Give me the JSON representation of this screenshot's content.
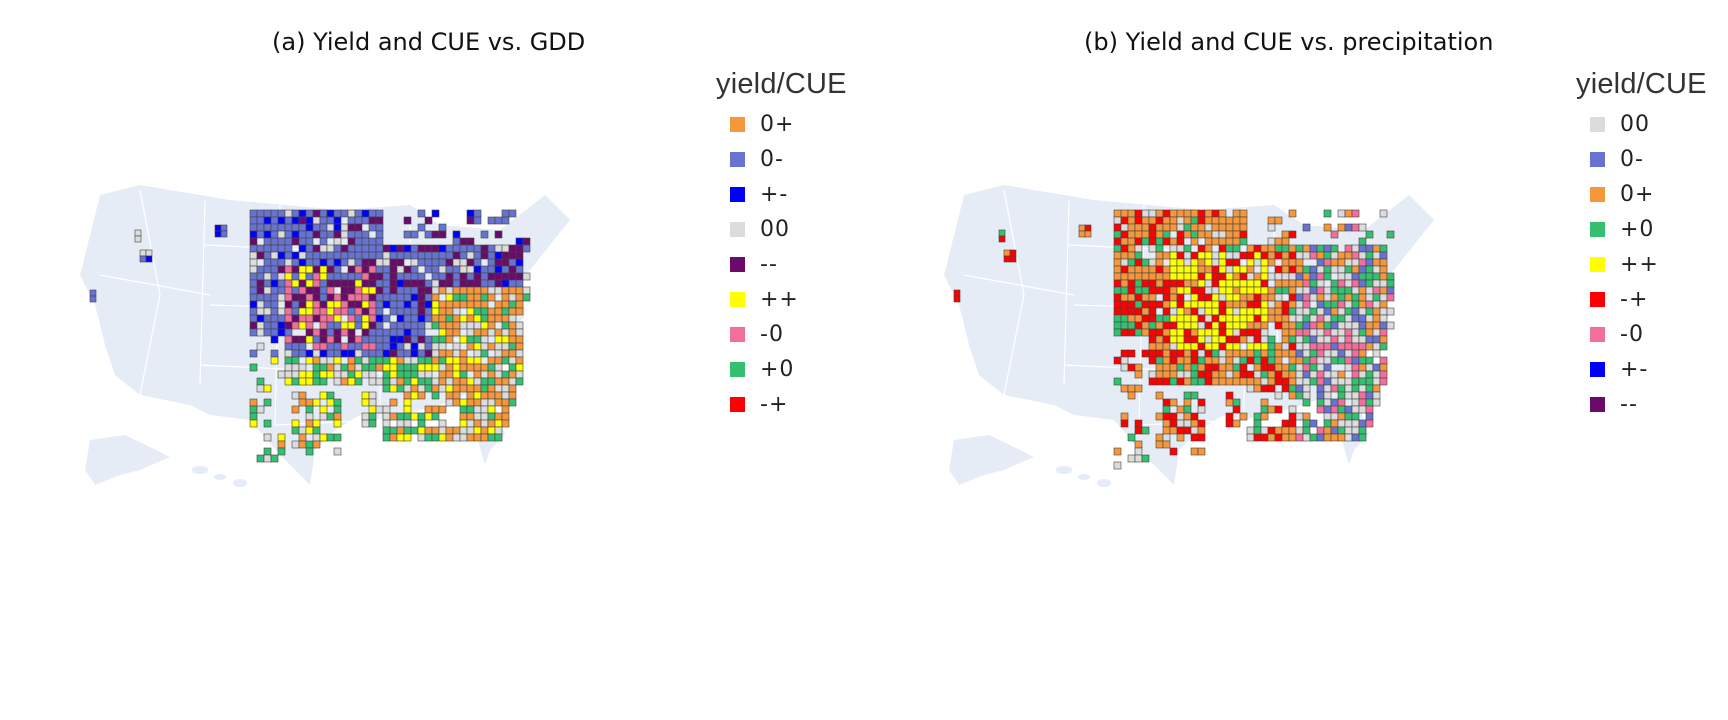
{
  "panels": [
    {
      "title": "(a) Yield and CUE vs. GDD",
      "legend": {
        "title": "yield/CUE",
        "items": [
          {
            "label": "0+",
            "color": "#f5983d"
          },
          {
            "label": "0-",
            "color": "#6773d1"
          },
          {
            "label": "+-",
            "color": "#0000ff"
          },
          {
            "label": "00",
            "color": "#dcdcdc"
          },
          {
            "label": "--",
            "color": "#6a0a6a"
          },
          {
            "label": "++",
            "color": "#ffff00"
          },
          {
            "label": "-0",
            "color": "#f26e9b"
          },
          {
            "label": "+0",
            "color": "#35bf70"
          },
          {
            "label": "-+",
            "color": "#ff0000"
          }
        ]
      }
    },
    {
      "title": "(b) Yield and CUE vs. precipitation",
      "legend": {
        "title": "yield/CUE",
        "items": [
          {
            "label": "00",
            "color": "#dcdcdc"
          },
          {
            "label": "0-",
            "color": "#6773d1"
          },
          {
            "label": "0+",
            "color": "#f5983d"
          },
          {
            "label": "+0",
            "color": "#35bf70"
          },
          {
            "label": "++",
            "color": "#ffff00"
          },
          {
            "label": "-+",
            "color": "#ff0000"
          },
          {
            "label": "-0",
            "color": "#f26e9b"
          },
          {
            "label": "+-",
            "color": "#0000ff"
          },
          {
            "label": "--",
            "color": "#6a0a6a"
          }
        ]
      }
    }
  ],
  "map_style": {
    "land_color": "#e5ecf6",
    "state_border_color": "#ffffff",
    "county_border_color": "#444444"
  }
}
